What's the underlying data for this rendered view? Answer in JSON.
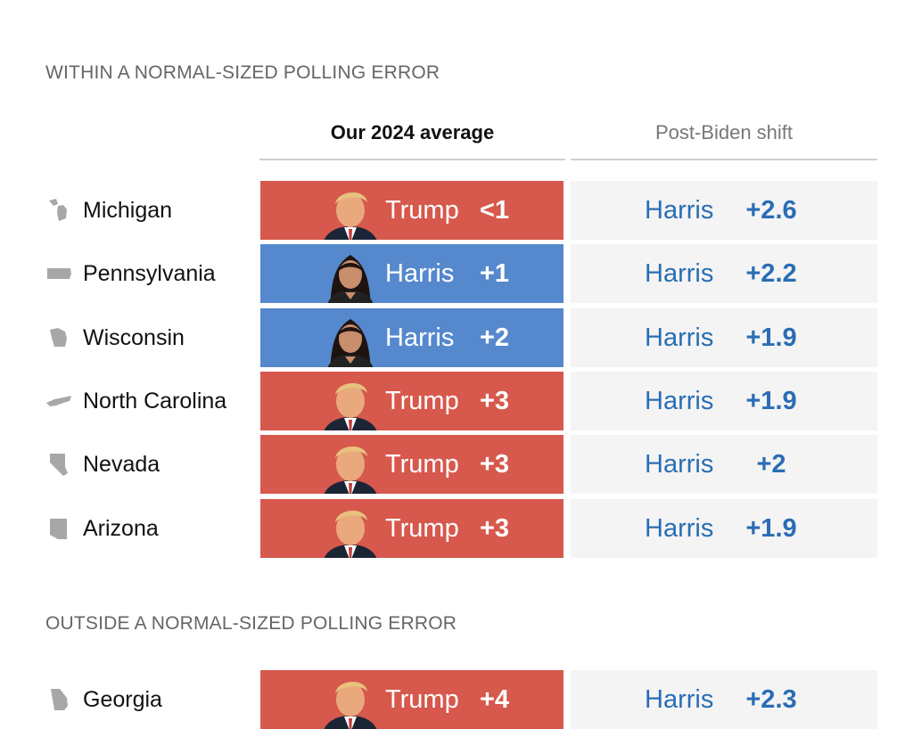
{
  "sections": [
    {
      "label": "WITHIN A NORMAL-SIZED POLLING ERROR"
    },
    {
      "label": "OUTSIDE A NORMAL-SIZED POLLING ERROR"
    }
  ],
  "columns": {
    "average": "Our 2024 average",
    "shift": "Post-Biden shift"
  },
  "colors": {
    "republican": "#d7584c",
    "democrat": "#5588cc",
    "shift_text": "#2a6db5",
    "shift_bg": "#f4f4f4"
  },
  "chart_data": {
    "type": "table",
    "columns": [
      "Our 2024 average",
      "Post-Biden shift"
    ],
    "rows": [
      {
        "state": "Michigan",
        "icon": "michigan-shape-icon",
        "avg_leader": "Trump",
        "avg_margin": "<1",
        "party": "rep",
        "shift_leader": "Harris",
        "shift_margin": "+2.6"
      },
      {
        "state": "Pennsylvania",
        "icon": "pennsylvania-shape-icon",
        "avg_leader": "Harris",
        "avg_margin": "+1",
        "party": "dem",
        "shift_leader": "Harris",
        "shift_margin": "+2.2"
      },
      {
        "state": "Wisconsin",
        "icon": "wisconsin-shape-icon",
        "avg_leader": "Harris",
        "avg_margin": "+2",
        "party": "dem",
        "shift_leader": "Harris",
        "shift_margin": "+1.9"
      },
      {
        "state": "North Carolina",
        "icon": "north-carolina-shape-icon",
        "avg_leader": "Trump",
        "avg_margin": "+3",
        "party": "rep",
        "shift_leader": "Harris",
        "shift_margin": "+1.9"
      },
      {
        "state": "Nevada",
        "icon": "nevada-shape-icon",
        "avg_leader": "Trump",
        "avg_margin": "+3",
        "party": "rep",
        "shift_leader": "Harris",
        "shift_margin": "+2"
      },
      {
        "state": "Arizona",
        "icon": "arizona-shape-icon",
        "avg_leader": "Trump",
        "avg_margin": "+3",
        "party": "rep",
        "shift_leader": "Harris",
        "shift_margin": "+1.9"
      },
      {
        "state": "Georgia",
        "icon": "georgia-shape-icon",
        "avg_leader": "Trump",
        "avg_margin": "+4",
        "party": "rep",
        "shift_leader": "Harris",
        "shift_margin": "+2.3"
      }
    ]
  }
}
